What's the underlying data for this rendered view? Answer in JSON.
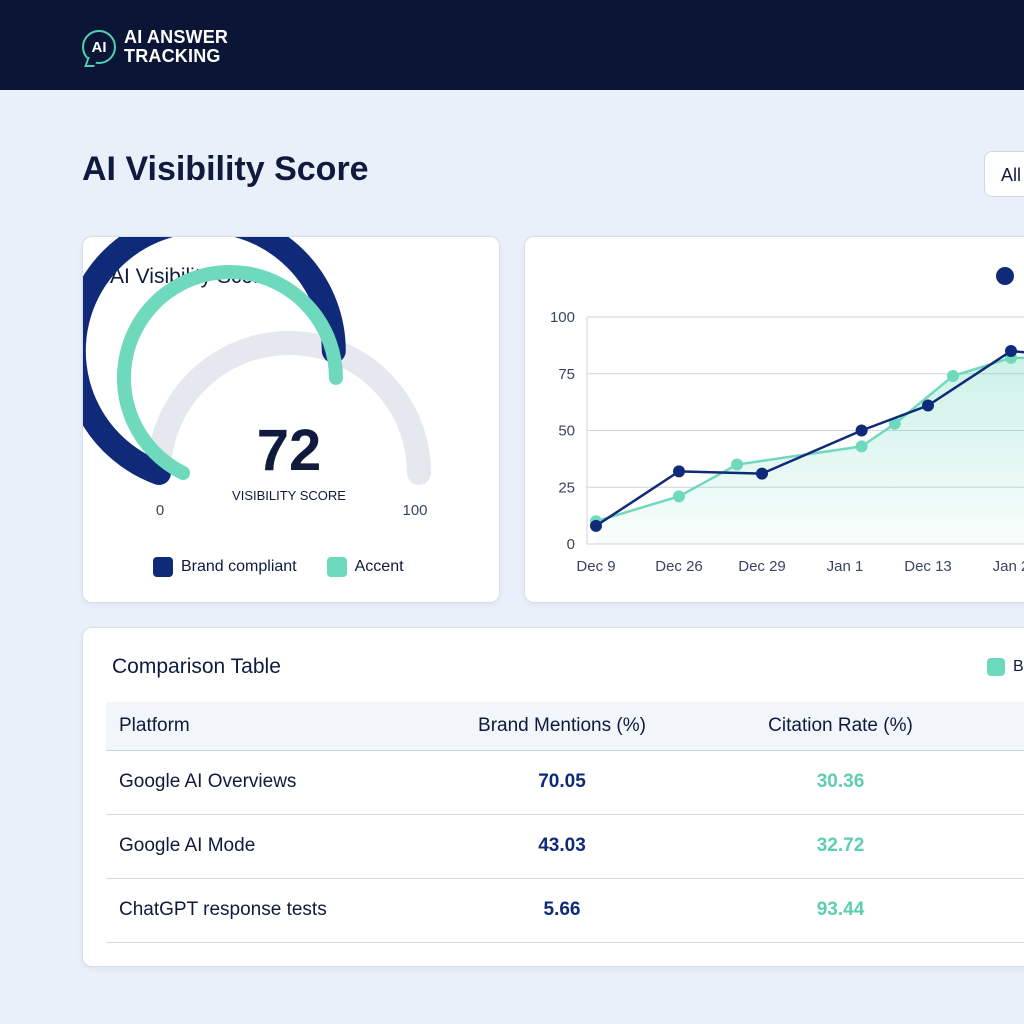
{
  "header": {
    "logo_mark": "AI",
    "logo_line1": "AI ANSWER",
    "logo_line2": "TRACKING"
  },
  "page": {
    "title": "AI Visibility Score",
    "filter_label": "All"
  },
  "gauge_card": {
    "title": "AI Visibility Score",
    "score": "72",
    "score_caption": "VISIBILITY SCORE",
    "min_label": "0",
    "max_label": "100",
    "brand_value": 72,
    "accent_value": 68,
    "legend": [
      {
        "label": "Brand compliant",
        "color": "#0f2a78"
      },
      {
        "label": "Accent",
        "color": "#6fd9bd"
      }
    ]
  },
  "chart_data": {
    "type": "line",
    "categories": [
      "Dec 9",
      "Dec 26",
      "Dec 29",
      "Jan 1",
      "Dec 13",
      "Jan 2"
    ],
    "ylim": [
      0,
      100
    ],
    "yticks": [
      0,
      25,
      50,
      75,
      100
    ],
    "legend_label": "",
    "series": [
      {
        "color": "#0f2a78",
        "points": [
          [
            0,
            8
          ],
          [
            0.5,
            32
          ],
          [
            1,
            31
          ],
          [
            1.6,
            50
          ],
          [
            2.0,
            61
          ],
          [
            2.5,
            85
          ],
          [
            2.65,
            84
          ]
        ]
      },
      {
        "color": "#6fd9bd",
        "points": [
          [
            0,
            10
          ],
          [
            0.5,
            21
          ],
          [
            0.85,
            35
          ],
          [
            1.6,
            43
          ],
          [
            1.8,
            53
          ],
          [
            2.15,
            74
          ],
          [
            2.5,
            82
          ],
          [
            2.65,
            82
          ]
        ]
      }
    ]
  },
  "table_card": {
    "title": "Comparison Table",
    "legend_label": "B",
    "columns": [
      "Platform",
      "Brand Mentions (%)",
      "Citation Rate (%)"
    ],
    "rows": [
      {
        "platform": "Google AI Overviews",
        "mentions": "70.05",
        "citation": "30.36"
      },
      {
        "platform": "Google AI Mode",
        "mentions": "43.03",
        "citation": "32.72"
      },
      {
        "platform": "ChatGPT response tests",
        "mentions": "5.66",
        "citation": "93.44"
      }
    ]
  }
}
